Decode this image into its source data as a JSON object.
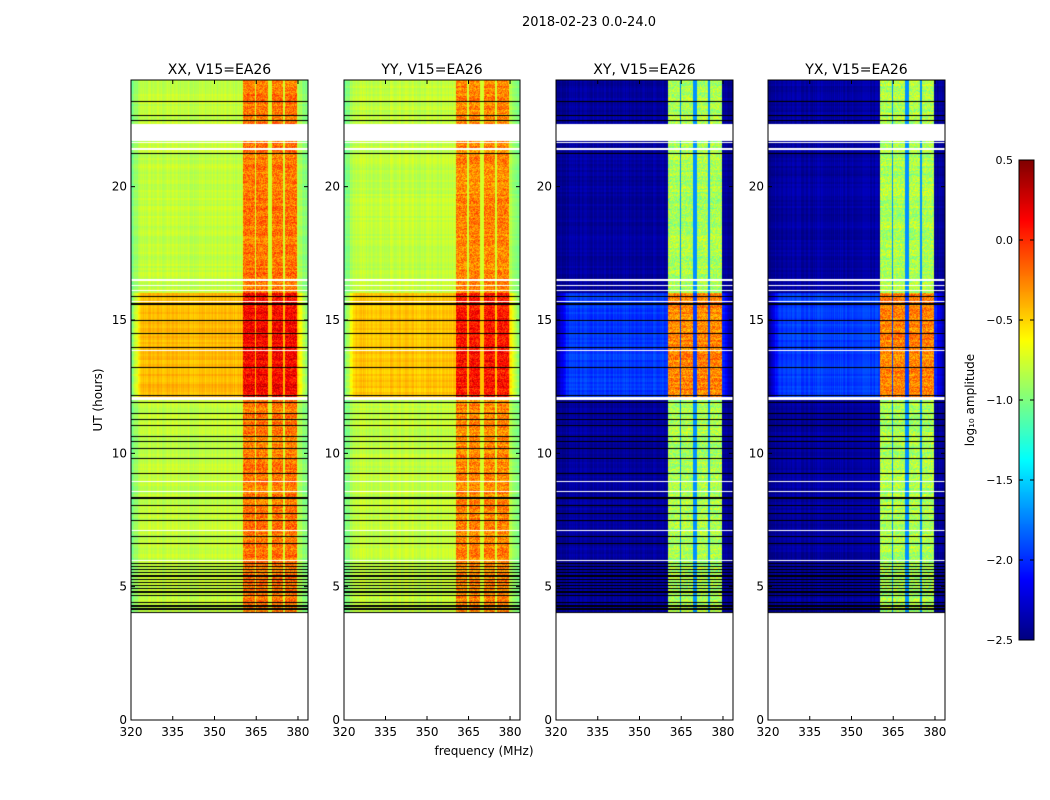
{
  "chart_data": {
    "type": "heatmap",
    "title": "2018-02-23 0.0-24.0",
    "xlabel": "frequency (MHz)",
    "ylabel": "UT (hours)",
    "xlim": [
      320,
      383.6
    ],
    "ylim": [
      0,
      24
    ],
    "xticks": [
      320,
      335,
      350,
      365,
      380
    ],
    "yticks": [
      0,
      5,
      10,
      15,
      20
    ],
    "data_time_range": [
      4.0,
      24.0
    ],
    "subbands_mhz": [
      [
        360.3,
        364.6
      ],
      [
        365.0,
        369.3
      ],
      [
        370.7,
        374.7
      ],
      [
        375.4,
        379.7
      ]
    ],
    "active_segment_hours": [
      12.1,
      16.0
    ],
    "flagged_white_hours": [
      [
        21.7,
        22.35
      ],
      [
        21.62,
        21.68
      ],
      [
        21.38,
        21.44
      ],
      [
        16.47,
        16.53
      ],
      [
        16.27,
        16.33
      ],
      [
        16.07,
        16.13
      ],
      [
        15.68,
        15.72
      ],
      [
        13.83,
        13.88
      ],
      [
        12.0,
        12.1
      ],
      [
        8.93,
        8.97
      ],
      [
        8.56,
        8.6
      ],
      [
        7.1,
        7.14
      ],
      [
        5.97,
        6.01
      ],
      [
        4.52,
        4.55
      ]
    ],
    "flagged_black_hours": [
      23.2,
      22.66,
      22.47,
      21.24,
      15.88,
      15.6,
      14.98,
      14.5,
      13.97,
      13.22,
      12.17,
      11.9,
      11.5,
      11.27,
      11.05,
      10.64,
      10.45,
      10.19,
      9.8,
      9.25,
      8.32,
      8.05,
      7.75,
      7.49,
      6.87,
      6.63,
      5.88,
      5.76,
      5.64,
      5.52,
      5.4,
      5.28,
      5.16,
      5.04,
      4.92,
      4.8,
      4.68,
      4.4,
      4.28,
      4.16,
      4.04
    ],
    "panels": [
      {
        "title": "XX, V15=EA26",
        "base_level": -0.8,
        "edge_level": -1.05,
        "band_level": -0.25,
        "active_base_level": -0.42,
        "active_band_level": 0.1,
        "gap_level": -0.75
      },
      {
        "title": "YY, V15=EA26",
        "base_level": -0.8,
        "edge_level": -1.05,
        "band_level": -0.3,
        "active_base_level": -0.45,
        "active_band_level": 0.05,
        "gap_level": -0.75
      },
      {
        "title": "XY, V15=EA26",
        "base_level": -2.4,
        "edge_level": -2.45,
        "band_level": -0.9,
        "active_base_level": -1.95,
        "active_band_level": -0.3,
        "gap_level": -1.7
      },
      {
        "title": "YX, V15=EA26",
        "base_level": -2.4,
        "edge_level": -2.45,
        "band_level": -0.9,
        "active_base_level": -1.95,
        "active_band_level": -0.3,
        "gap_level": -1.7
      }
    ],
    "colorbar": {
      "label": "log₁₀ amplitude",
      "colormap": "jet",
      "range": [
        -2.5,
        0.5
      ],
      "ticks": [
        "0.5",
        "0.0",
        "−0.5",
        "−1.0",
        "−1.5",
        "−2.0",
        "−2.5"
      ],
      "tick_values": [
        0.5,
        0.0,
        -0.5,
        -1.0,
        -1.5,
        -2.0,
        -2.5
      ]
    }
  }
}
